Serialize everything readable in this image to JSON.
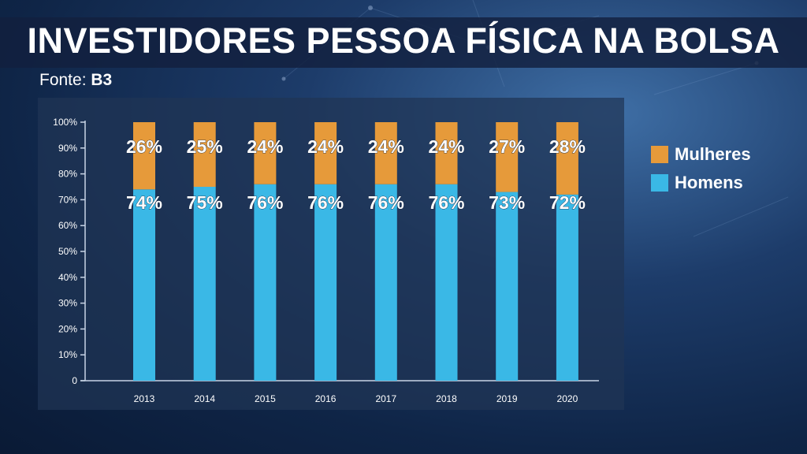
{
  "title": "INVESTIDORES PESSOA FÍSICA NA BOLSA",
  "source_label": "Fonte: ",
  "source_value": "B3",
  "colors": {
    "homens": "#3ab8e6",
    "mulheres": "#e69a3a",
    "background": "#0f2547"
  },
  "chart_data": {
    "type": "bar",
    "stacked": true,
    "categories": [
      "2013",
      "2014",
      "2015",
      "2016",
      "2017",
      "2018",
      "2019",
      "2020"
    ],
    "series": [
      {
        "name": "Homens",
        "values": [
          74,
          75,
          76,
          76,
          76,
          76,
          73,
          72
        ],
        "labels": [
          "74%",
          "75%",
          "76%",
          "76%",
          "76%",
          "76%",
          "73%",
          "72%"
        ]
      },
      {
        "name": "Mulheres",
        "values": [
          26,
          25,
          24,
          24,
          24,
          24,
          27,
          28
        ],
        "labels": [
          "26%",
          "25%",
          "24%",
          "24%",
          "24%",
          "24%",
          "27%",
          "28%"
        ]
      }
    ],
    "ylim": [
      0,
      100
    ],
    "yticks": [
      "0",
      "10%",
      "20%",
      "30%",
      "40%",
      "50%",
      "60%",
      "70%",
      "80%",
      "90%",
      "100%"
    ],
    "legend_position": "right",
    "grid": false
  }
}
